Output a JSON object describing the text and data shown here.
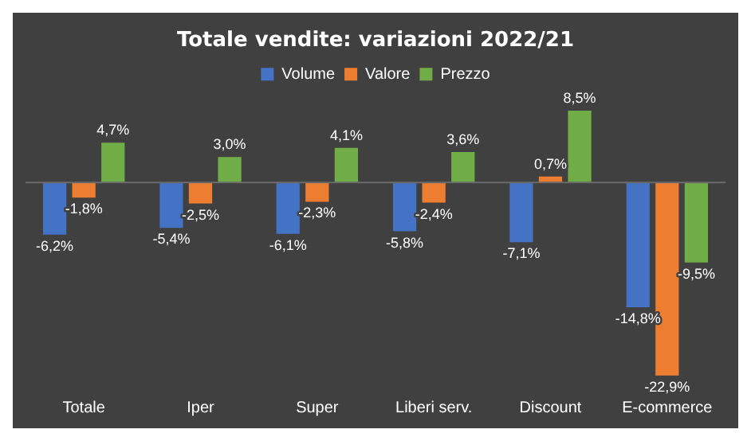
{
  "chart_data": {
    "type": "bar",
    "title": "Totale vendite: variazioni 2022/21",
    "categories": [
      "Totale",
      "Iper",
      "Super",
      "Liberi serv.",
      "Discount",
      "E-commerce"
    ],
    "series": [
      {
        "name": "Volume",
        "color": "#4472c4",
        "values": [
          -6.2,
          -5.4,
          -6.1,
          -5.8,
          -7.1,
          -14.8
        ],
        "value_labels": [
          "-6,2%",
          "-5,4%",
          "-6,1%",
          "-5,8%",
          "-7,1%",
          "-14,8%"
        ]
      },
      {
        "name": "Valore",
        "color": "#ed7d31",
        "values": [
          -1.8,
          -2.5,
          -2.3,
          -2.4,
          0.7,
          -22.9
        ],
        "value_labels": [
          "-1,8%",
          "-2,5%",
          "-2,3%",
          "-2,4%",
          "0,7%",
          "-22,9%"
        ]
      },
      {
        "name": "Prezzo",
        "color": "#70ad47",
        "values": [
          4.7,
          3.0,
          4.1,
          3.6,
          8.5,
          -9.5
        ],
        "value_labels": [
          "4,7%",
          "3,0%",
          "4,1%",
          "3,6%",
          "8,5%",
          "-9,5%"
        ]
      }
    ],
    "legend": "top",
    "tick_labels": "x"
  }
}
